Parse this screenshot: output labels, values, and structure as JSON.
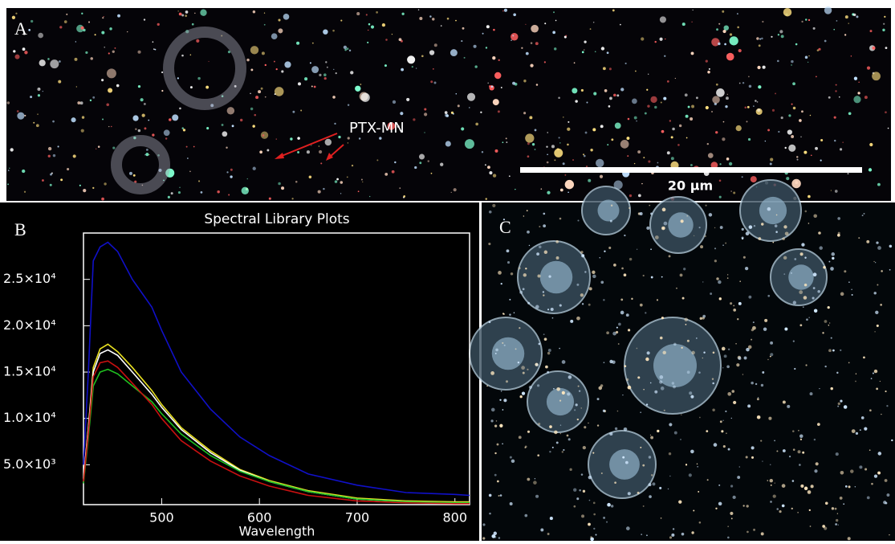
{
  "panels": {
    "a": {
      "label": "A",
      "annotation": "PTX-MN",
      "scale_bar": "20 µm"
    },
    "b": {
      "label": "B"
    },
    "c": {
      "label": "C"
    }
  },
  "chart_data": {
    "type": "line",
    "title": "Spectral Library Plots",
    "x_label": "Wavelength",
    "x": [
      420,
      425,
      430,
      437,
      445,
      455,
      470,
      490,
      500,
      520,
      550,
      580,
      610,
      650,
      700,
      750,
      800,
      815
    ],
    "series": [
      {
        "name": null,
        "color": "#1010c8",
        "values": [
          5000,
          15000,
          27000,
          28500,
          29000,
          28000,
          25000,
          22000,
          19500,
          15000,
          11000,
          8000,
          6000,
          4000,
          2800,
          2000,
          1800,
          1700
        ]
      },
      {
        "name": null,
        "color": "#e8e020",
        "values": [
          3500,
          9000,
          15500,
          17500,
          18000,
          17200,
          15500,
          13000,
          11500,
          9000,
          6500,
          4500,
          3300,
          2200,
          1400,
          1100,
          1000,
          1000
        ]
      },
      {
        "name": null,
        "color": "#ffffff",
        "values": [
          3500,
          9000,
          15000,
          17000,
          17400,
          16800,
          15000,
          12600,
          11200,
          8800,
          6300,
          4400,
          3200,
          2100,
          1300,
          1000,
          900,
          900
        ]
      },
      {
        "name": null,
        "color": "#20c020",
        "values": [
          3000,
          8000,
          13500,
          15000,
          15300,
          14800,
          13500,
          11800,
          10500,
          8300,
          6000,
          4300,
          3200,
          2100,
          1300,
          1000,
          900,
          900
        ]
      },
      {
        "name": null,
        "color": "#c81010",
        "values": [
          3200,
          8500,
          14500,
          16000,
          16200,
          15500,
          13800,
          11500,
          10000,
          7600,
          5400,
          3800,
          2700,
          1700,
          1100,
          900,
          800,
          800
        ]
      }
    ],
    "xlim": [
      420,
      815
    ],
    "ylim": [
      700,
      30000
    ],
    "xticks": [
      500,
      600,
      700,
      800
    ],
    "yticks": [
      {
        "value": 5000,
        "label": "5.0×10³"
      },
      {
        "value": 10000,
        "label": "1.0×10⁴"
      },
      {
        "value": 15000,
        "label": "1.5×10⁴"
      },
      {
        "value": 20000,
        "label": "2.0×10⁴"
      },
      {
        "value": 25000,
        "label": "2.5×10⁴"
      }
    ]
  }
}
